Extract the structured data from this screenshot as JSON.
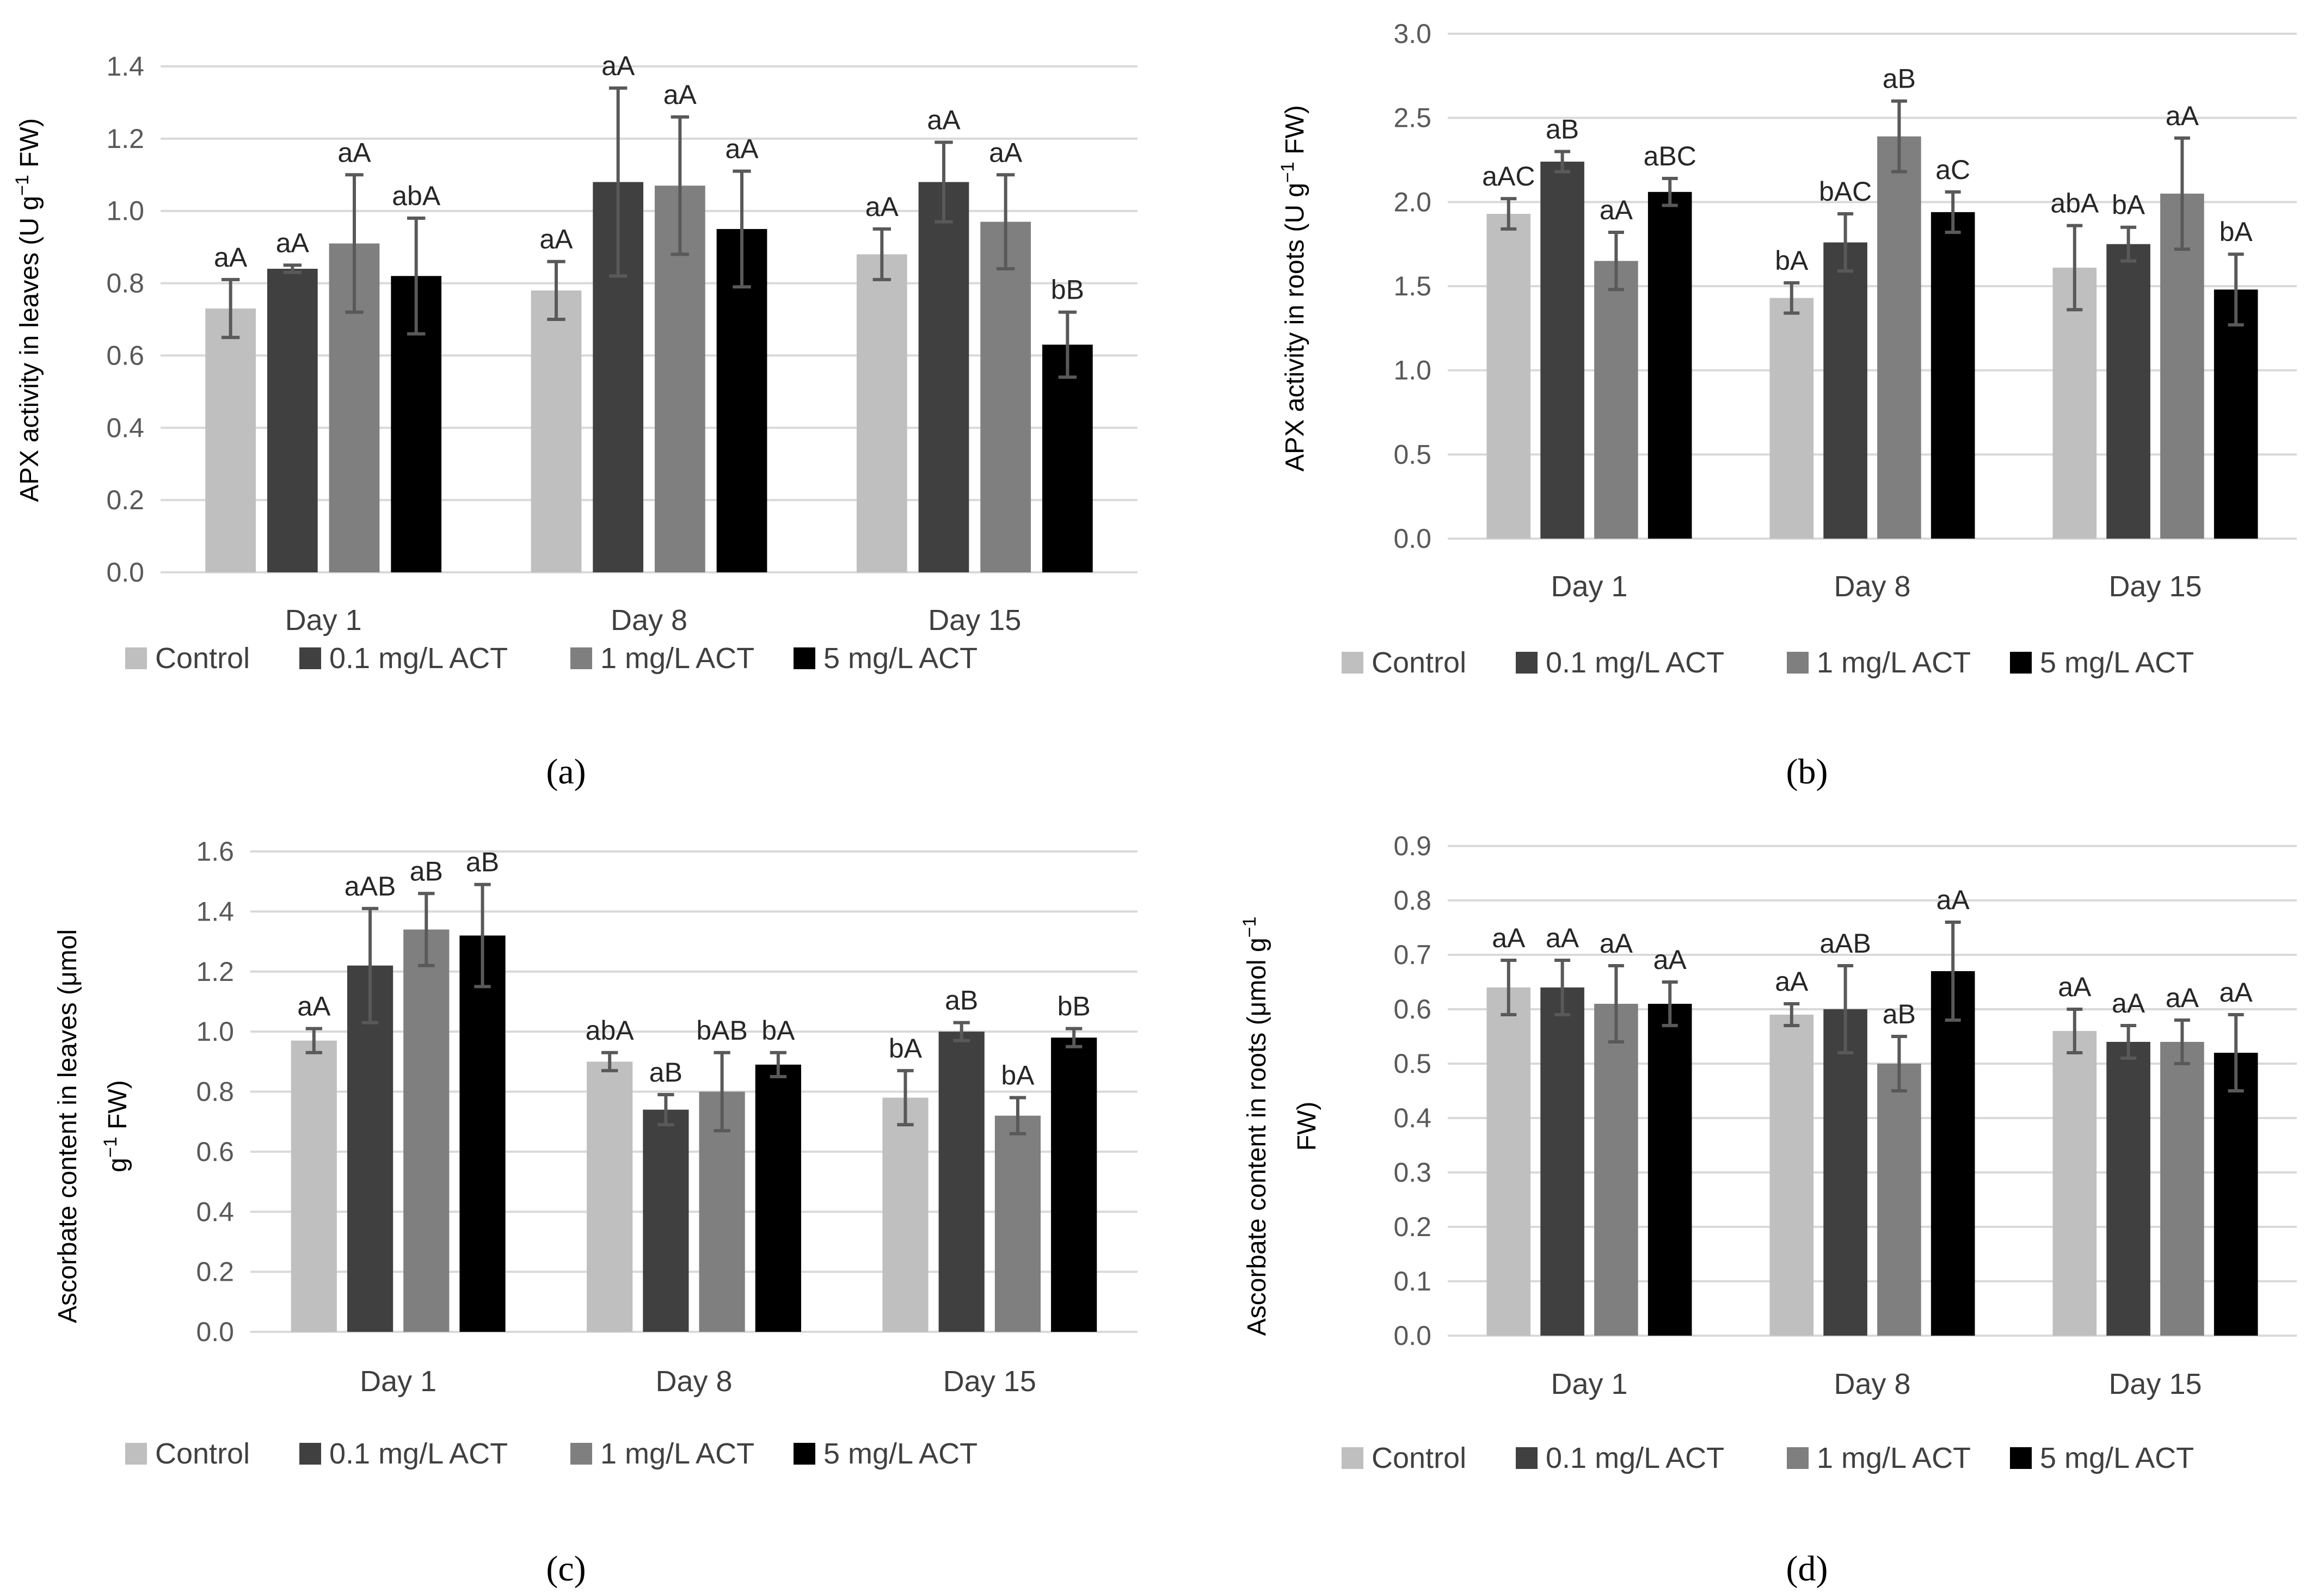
{
  "legend": [
    "Control",
    "0.1 mg/L ACT",
    "1 mg/L ACT",
    "5 mg/L ACT"
  ],
  "colors": [
    "#bfbfbf",
    "#404040",
    "#7f7f7f",
    "#000000"
  ],
  "chart_data": [
    {
      "panel": "a",
      "type": "bar",
      "ylabel_main": "APX activity in leaves (U g",
      "ylabel_sup": "−1",
      "ylabel_end": " FW)",
      "categories": [
        "Day 1",
        "Day 8",
        "Day 15"
      ],
      "ylim": [
        0,
        1.4
      ],
      "ytick_step": 0.2,
      "ytick_decimals": 1,
      "grid": true,
      "legend_position": "bottom",
      "series": [
        {
          "name": "Control",
          "values": [
            0.73,
            0.78,
            0.88
          ],
          "errors": [
            0.08,
            0.08,
            0.07
          ],
          "labels": [
            "aA",
            "aA",
            "aA"
          ]
        },
        {
          "name": "0.1 mg/L ACT",
          "values": [
            0.84,
            1.08,
            1.08
          ],
          "errors": [
            0.01,
            0.26,
            0.11
          ],
          "labels": [
            "aA",
            "aA",
            "aA"
          ]
        },
        {
          "name": "1 mg/L ACT",
          "values": [
            0.91,
            1.07,
            0.97
          ],
          "errors": [
            0.19,
            0.19,
            0.13
          ],
          "labels": [
            "aA",
            "aA",
            "aA"
          ]
        },
        {
          "name": "5 mg/L ACT",
          "values": [
            0.82,
            0.95,
            0.63
          ],
          "errors": [
            0.16,
            0.16,
            0.09
          ],
          "labels": [
            "abA",
            "aA",
            "bB"
          ]
        }
      ]
    },
    {
      "panel": "b",
      "type": "bar",
      "ylabel_main": "APX activity in roots  (U g",
      "ylabel_sup": "−1",
      "ylabel_end": " FW)",
      "categories": [
        "Day 1",
        "Day 8",
        "Day 15"
      ],
      "ylim": [
        0,
        3.0
      ],
      "ytick_step": 0.5,
      "ytick_decimals": 1,
      "grid": true,
      "legend_position": "bottom",
      "series": [
        {
          "name": "Control",
          "values": [
            1.93,
            1.43,
            1.61
          ],
          "errors": [
            0.09,
            0.09,
            0.25
          ],
          "labels": [
            "aAC",
            "bA",
            "abA"
          ]
        },
        {
          "name": "0.1 mg/L ACT",
          "values": [
            2.24,
            1.76,
            1.75
          ],
          "errors": [
            0.06,
            0.17,
            0.1
          ],
          "labels": [
            "aB",
            "bAC",
            "bA"
          ]
        },
        {
          "name": "1 mg/L ACT",
          "values": [
            1.65,
            2.39,
            2.05
          ],
          "errors": [
            0.17,
            0.21,
            0.33
          ],
          "labels": [
            "aA",
            "aB",
            "aA"
          ]
        },
        {
          "name": "5 mg/L ACT",
          "values": [
            2.06,
            1.94,
            1.48
          ],
          "errors": [
            0.08,
            0.12,
            0.21
          ],
          "labels": [
            "aBC",
            "aC",
            "bA"
          ]
        }
      ]
    },
    {
      "panel": "c",
      "type": "bar",
      "ylabel_line1": "Ascorbate content in leaves (μmol",
      "ylabel_line2_sup": "−1",
      "ylabel_line2_pre": "g",
      "ylabel_line2_end": " FW)",
      "categories": [
        "Day 1",
        "Day 8",
        "Day 15"
      ],
      "ylim": [
        0,
        1.6
      ],
      "ytick_step": 0.2,
      "ytick_decimals": 1,
      "grid": true,
      "legend_position": "bottom",
      "series": [
        {
          "name": "Control",
          "values": [
            0.97,
            0.9,
            0.78
          ],
          "errors": [
            0.04,
            0.03,
            0.09
          ],
          "labels": [
            "aA",
            "abA",
            "bA"
          ]
        },
        {
          "name": "0.1 mg/L ACT",
          "values": [
            1.22,
            0.74,
            1.0
          ],
          "errors": [
            0.19,
            0.05,
            0.03
          ],
          "labels": [
            "aAB",
            "aB",
            "aB"
          ]
        },
        {
          "name": "1 mg/L ACT",
          "values": [
            1.34,
            0.8,
            0.72
          ],
          "errors": [
            0.12,
            0.13,
            0.06
          ],
          "labels": [
            "aB",
            "bAB",
            "bA"
          ]
        },
        {
          "name": "5 mg/L ACT",
          "values": [
            1.32,
            0.89,
            0.98
          ],
          "errors": [
            0.17,
            0.04,
            0.03
          ],
          "labels": [
            "aB",
            "bA",
            "bB"
          ]
        }
      ]
    },
    {
      "panel": "d",
      "type": "bar",
      "ylabel_line1_pre": "Ascorbate content in roots (μmol g",
      "ylabel_line1_sup": "−1",
      "ylabel_line2": "FW)",
      "categories": [
        "Day 1",
        "Day 8",
        "Day 15"
      ],
      "ylim": [
        0,
        0.9
      ],
      "ytick_step": 0.1,
      "ytick_decimals": 1,
      "grid": true,
      "legend_position": "bottom",
      "series": [
        {
          "name": "Control",
          "values": [
            0.64,
            0.59,
            0.56
          ],
          "errors": [
            0.05,
            0.02,
            0.04
          ],
          "labels": [
            "aA",
            "aA",
            "aA"
          ]
        },
        {
          "name": "0.1 mg/L ACT",
          "values": [
            0.64,
            0.6,
            0.54
          ],
          "errors": [
            0.05,
            0.08,
            0.03
          ],
          "labels": [
            "aA",
            "aAB",
            "aA"
          ]
        },
        {
          "name": "1 mg/L ACT",
          "values": [
            0.61,
            0.5,
            0.54
          ],
          "errors": [
            0.07,
            0.05,
            0.04
          ],
          "labels": [
            "aA",
            "aB",
            "aA"
          ]
        },
        {
          "name": "5 mg/L ACT",
          "values": [
            0.61,
            0.67,
            0.52
          ],
          "errors": [
            0.04,
            0.09,
            0.07
          ],
          "labels": [
            "aA",
            "aA",
            "aA"
          ]
        }
      ]
    }
  ],
  "panel_labels": [
    "(a)",
    "(b)",
    "(c)",
    "(d)"
  ]
}
